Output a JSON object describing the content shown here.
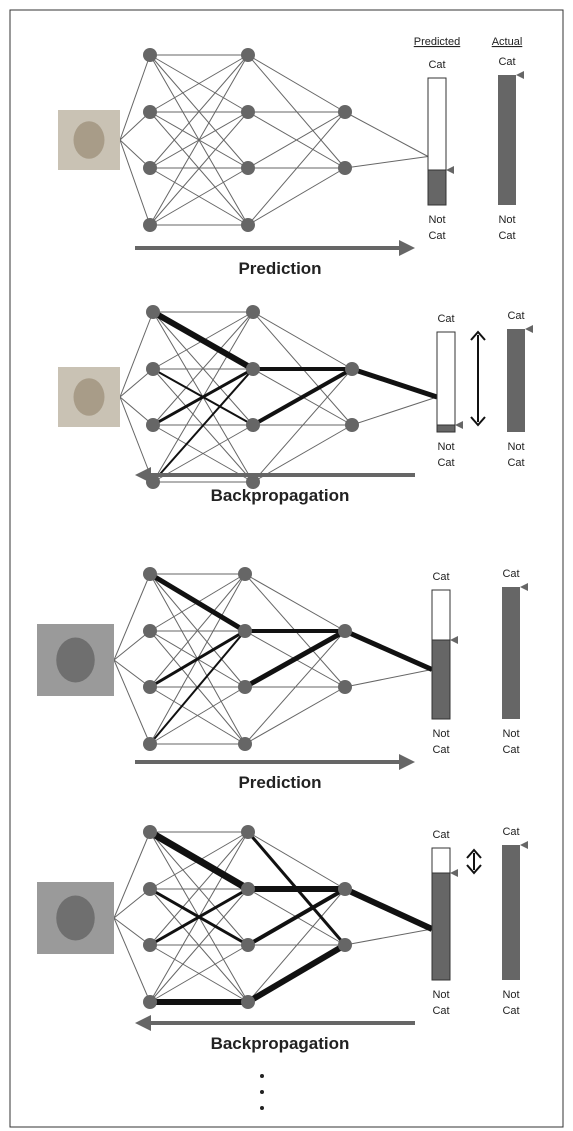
{
  "panels": [
    {
      "predicted_header": "Predicted",
      "actual_header": "Actual",
      "predicted_top": "Cat",
      "actual_top": "Cat",
      "predicted_bottom": [
        "Not",
        "Cat"
      ],
      "actual_bottom": [
        "Not",
        "Cat"
      ],
      "caption": "Prediction"
    },
    {
      "predicted_top": "Cat",
      "actual_top": "Cat",
      "predicted_bottom": [
        "Not",
        "Cat"
      ],
      "actual_bottom": [
        "Not",
        "Cat"
      ],
      "caption": "Backpropagation"
    },
    {
      "predicted_top": "Cat",
      "actual_top": "Cat",
      "predicted_bottom": [
        "Not",
        "Cat"
      ],
      "actual_bottom": [
        "Not",
        "Cat"
      ],
      "caption": "Prediction"
    },
    {
      "predicted_top": "Cat",
      "actual_top": "Cat",
      "predicted_bottom": [
        "Not",
        "Cat"
      ],
      "actual_bottom": [
        "Not",
        "Cat"
      ],
      "caption": "Backpropagation"
    }
  ]
}
